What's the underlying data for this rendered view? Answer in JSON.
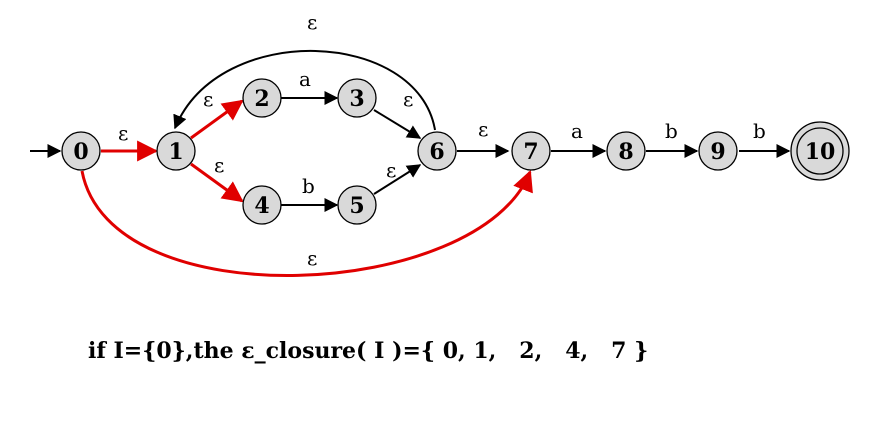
{
  "nfa": {
    "start_state": "0",
    "accept_states": [
      "10"
    ],
    "states": [
      "0",
      "1",
      "2",
      "3",
      "4",
      "5",
      "6",
      "7",
      "8",
      "9",
      "10"
    ],
    "transitions": [
      {
        "from": "0",
        "to": "1",
        "symbol": "ε",
        "highlight": true
      },
      {
        "from": "1",
        "to": "2",
        "symbol": "ε",
        "highlight": true
      },
      {
        "from": "1",
        "to": "4",
        "symbol": "ε",
        "highlight": true
      },
      {
        "from": "2",
        "to": "3",
        "symbol": "a",
        "highlight": false
      },
      {
        "from": "3",
        "to": "6",
        "symbol": "ε",
        "highlight": false
      },
      {
        "from": "4",
        "to": "5",
        "symbol": "b",
        "highlight": false
      },
      {
        "from": "5",
        "to": "6",
        "symbol": "ε",
        "highlight": false
      },
      {
        "from": "6",
        "to": "1",
        "symbol": "ε",
        "highlight": false
      },
      {
        "from": "6",
        "to": "7",
        "symbol": "ε",
        "highlight": false
      },
      {
        "from": "0",
        "to": "7",
        "symbol": "ε",
        "highlight": true
      },
      {
        "from": "7",
        "to": "8",
        "symbol": "a",
        "highlight": false
      },
      {
        "from": "8",
        "to": "9",
        "symbol": "b",
        "highlight": false
      },
      {
        "from": "9",
        "to": "10",
        "symbol": "b",
        "highlight": false
      }
    ],
    "colors": {
      "highlight": "#e00000",
      "normal": "#000000",
      "state_fill": "#d9d9d9"
    }
  },
  "caption": "if I={0},the ε_closure( I )={ 0, 1,   2,   4,   7 }"
}
